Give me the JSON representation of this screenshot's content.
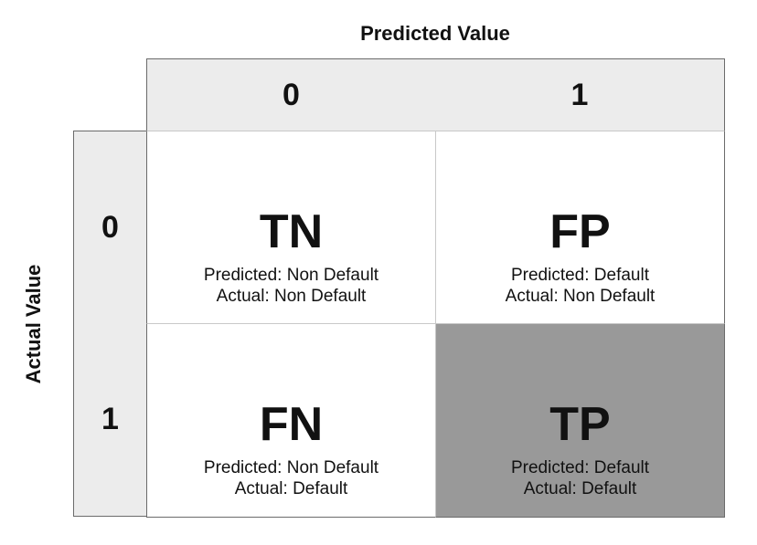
{
  "axes": {
    "predicted_title": "Predicted Value",
    "actual_title": "Actual Value"
  },
  "columns": [
    "0",
    "1"
  ],
  "rows": [
    "0",
    "1"
  ],
  "cells": {
    "tn": {
      "abbr": "TN",
      "line1": "Predicted: Non Default",
      "line2": "Actual: Non Default"
    },
    "fp": {
      "abbr": "FP",
      "line1": "Predicted: Default",
      "line2": "Actual: Non Default"
    },
    "fn": {
      "abbr": "FN",
      "line1": "Predicted: Non Default",
      "line2": "Actual: Default"
    },
    "tp": {
      "abbr": "TP",
      "line1": "Predicted: Default",
      "line2": "Actual: Default"
    }
  },
  "colors": {
    "header_fill": "#ececec",
    "highlight_fill": "#999999",
    "border": "#6b6b6b"
  }
}
